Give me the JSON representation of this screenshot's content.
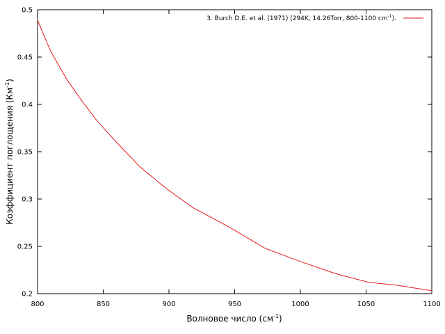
{
  "chart_data": {
    "type": "line",
    "title": "",
    "xlabel": "Волновое число (см",
    "xlabel_sup": "-1",
    "xlabel_end": ")",
    "ylabel": "Коэффициент поглощения (Км",
    "ylabel_sup": "-1",
    "ylabel_end": ")",
    "xlim": [
      800,
      1100
    ],
    "ylim": [
      0.2,
      0.5
    ],
    "xticks": [
      800,
      850,
      900,
      950,
      1000,
      1050,
      1100
    ],
    "yticks": [
      0.2,
      0.25,
      0.3,
      0.35,
      0.4,
      0.45,
      0.5
    ],
    "xtick_labels": [
      "800",
      "850",
      "900",
      "950",
      "1000",
      "1050",
      "1100"
    ],
    "ytick_labels": [
      "0.2",
      "0.25",
      "0.3",
      "0.35",
      "0.4",
      "0.45",
      "0.5"
    ],
    "legend_position": "top-right",
    "series": [
      {
        "name": "3. Burch D.E. et al. (1971) (294K, 14.26Torr, 800-1100 cm",
        "name_sup": "-1",
        "name_end": ").",
        "color": "#e41a1c",
        "x": [
          800,
          810,
          822,
          833,
          845,
          860,
          878,
          898,
          918,
          945,
          973,
          1000,
          1027,
          1052,
          1073,
          1100
        ],
        "y": [
          0.489,
          0.456,
          0.427,
          0.405,
          0.383,
          0.36,
          0.334,
          0.311,
          0.291,
          0.271,
          0.248,
          0.234,
          0.221,
          0.212,
          0.209,
          0.203
        ]
      }
    ]
  }
}
